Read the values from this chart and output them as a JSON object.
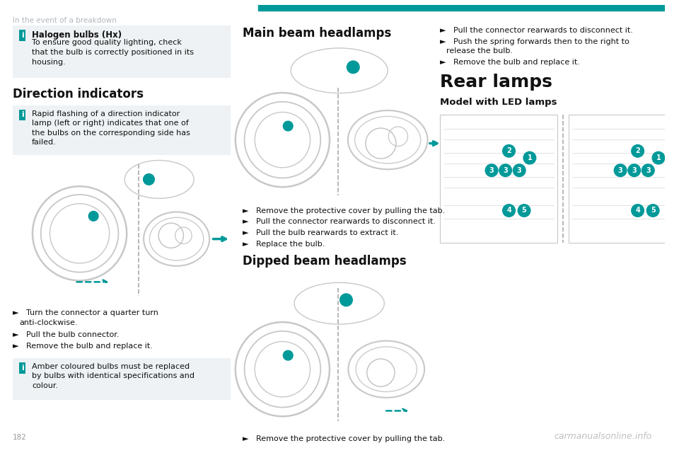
{
  "bg_color": "#ffffff",
  "header_text": "In the event of a breakdown",
  "header_color": "#b0b8be",
  "teal_color": "#009999",
  "page_number": "182",
  "watermark": "carmanualsonline.info",
  "info_box_bg": "#eef2f4",
  "info_icon_color": "#009999",
  "col1": {
    "info_box1_title": "Halogen bulbs (Hx)",
    "info_box1_body": "To ensure good quality lighting, check\nthat the bulb is correctly positioned in its\nhousing.",
    "section_title": "Direction indicators",
    "info_box2_body": "Rapid flashing of a direction indicator\nlamp (left or right) indicates that one of\nthe bulbs on the corresponding side has\nfailed.",
    "bullet1": "►   Turn the connector a quarter turn\nanti-clockwise.",
    "bullet2": "►   Pull the bulb connector.",
    "bullet3": "►   Remove the bulb and replace it.",
    "info_box3_body": "Amber coloured bulbs must be replaced\nby bulbs with identical specifications and\ncolour."
  },
  "col2": {
    "section_title": "Main beam headlamps",
    "mb_bullet1": "►   Remove the protective cover by pulling the tab.",
    "mb_bullet2": "►   Pull the connector rearwards to disconnect it.",
    "mb_bullet3": "►   Pull the bulb rearwards to extract it.",
    "mb_bullet4": "►   Replace the bulb.",
    "section_title2": "Dipped beam headlamps",
    "db_bullet1": "►   Remove the protective cover by pulling the tab."
  },
  "col3": {
    "bullet1": "►   Pull the connector rearwards to disconnect it.",
    "bullet2": "►   Push the spring forwards then to the right to\nrelease the bulb.",
    "bullet3": "►   Remove the bulb and replace it.",
    "section_title": "Rear lamps",
    "subsection_title": "Model with LED lamps"
  }
}
